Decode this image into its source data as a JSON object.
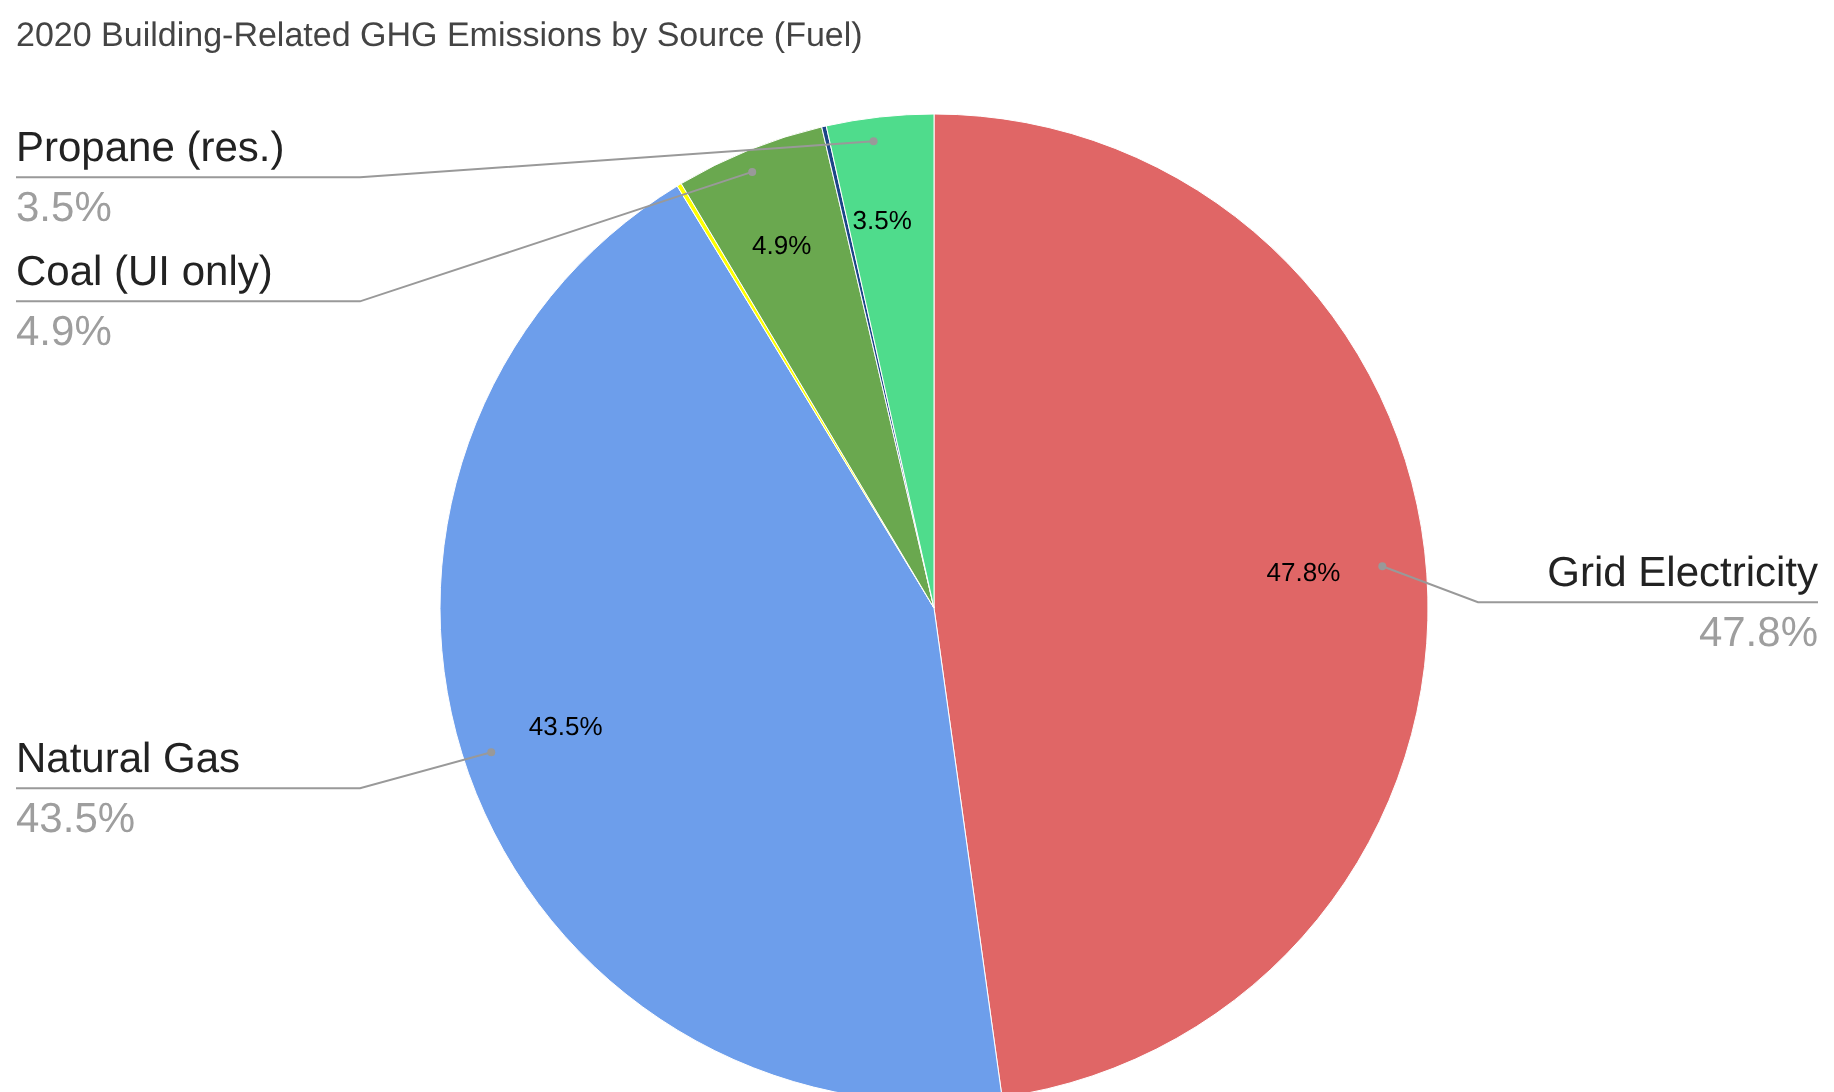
{
  "chart_data": {
    "type": "pie",
    "title": "2020 Building-Related GHG Emissions by Source (Fuel)",
    "categories": [
      "Grid Electricity",
      "Natural Gas",
      null,
      "Coal (UI only)",
      null,
      "Propane (res.)"
    ],
    "values": [
      47.8,
      43.5,
      0.15,
      4.9,
      0.15,
      3.5
    ],
    "colors": [
      "#e06666",
      "#6d9eeb",
      "#ffff00",
      "#6aa84f",
      "#1c4587",
      "#4fdc8c"
    ],
    "value_labels": [
      "47.8%",
      "43.5%",
      null,
      "4.9%",
      null,
      "3.5%"
    ]
  }
}
